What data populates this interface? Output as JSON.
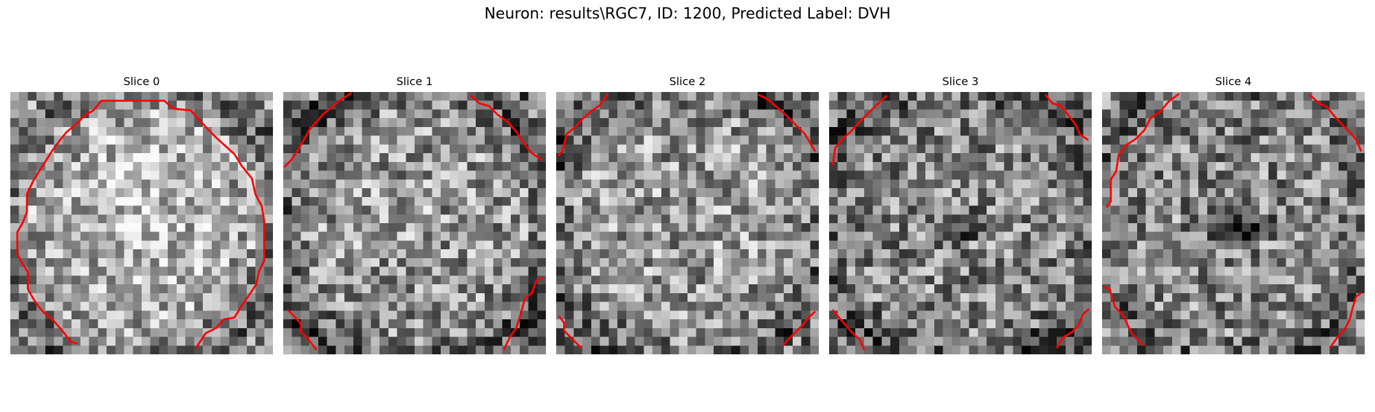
{
  "figure": {
    "title": "Neuron: results\\RGC7, ID: 1200, Predicted Label: DVH"
  },
  "panels": [
    {
      "title": "Slice 0"
    },
    {
      "title": "Slice 1"
    },
    {
      "title": "Slice 2"
    },
    {
      "title": "Slice 3"
    },
    {
      "title": "Slice 4"
    }
  ],
  "colors": {
    "contour": "#ff0000",
    "colormap": "gray"
  }
}
